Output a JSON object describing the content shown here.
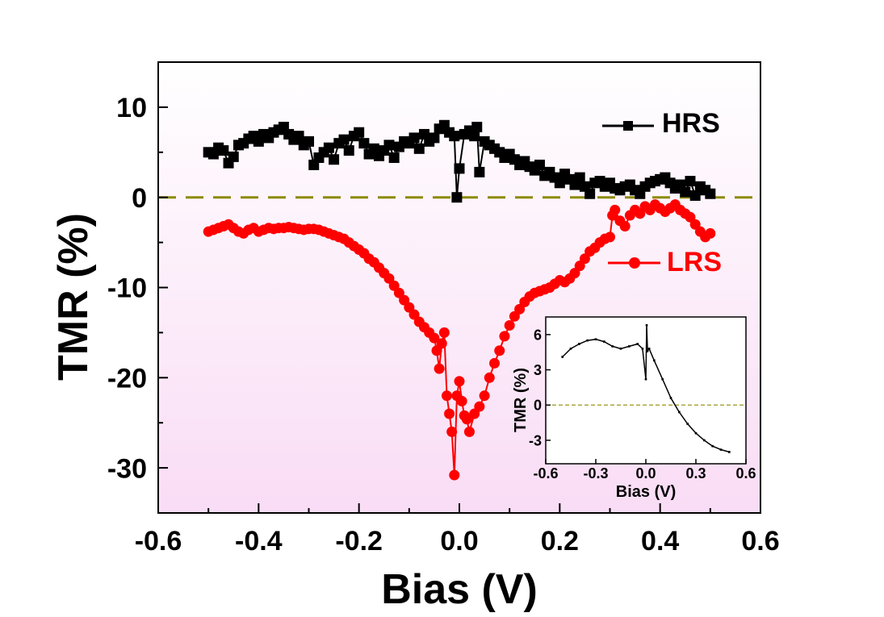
{
  "chart_data": [
    {
      "type": "line",
      "xlabel": "Bias (V)",
      "ylabel": "TMR (%)",
      "xlim": [
        -0.6,
        0.6
      ],
      "ylim": [
        -35,
        15
      ],
      "xticks": [
        "-0.6",
        "-0.4",
        "-0.2",
        "0.0",
        "0.2",
        "0.4",
        "0.6"
      ],
      "yticks": [
        "10",
        "0",
        "-10",
        "-20",
        "-30"
      ],
      "xtick_values": [
        -0.6,
        -0.4,
        -0.2,
        0.0,
        0.2,
        0.4,
        0.6
      ],
      "ytick_values": [
        10,
        0,
        -10,
        -20,
        -30
      ],
      "background": "pink gradient (white at top to light pink at bottom)",
      "reference_line": {
        "y": 0,
        "style": "dashed",
        "color": "#8b8b00"
      },
      "legend": [
        {
          "name": "HRS",
          "color": "#000000",
          "marker": "square",
          "position": "top-right"
        },
        {
          "name": "LRS",
          "color": "#ff0000",
          "marker": "circle",
          "position": "right"
        }
      ],
      "series": [
        {
          "name": "HRS",
          "color": "#000000",
          "marker": "square",
          "x": [
            -0.5,
            -0.49,
            -0.48,
            -0.47,
            -0.46,
            -0.45,
            -0.44,
            -0.43,
            -0.42,
            -0.41,
            -0.4,
            -0.39,
            -0.38,
            -0.37,
            -0.36,
            -0.35,
            -0.34,
            -0.33,
            -0.32,
            -0.31,
            -0.3,
            -0.29,
            -0.28,
            -0.27,
            -0.26,
            -0.25,
            -0.24,
            -0.23,
            -0.22,
            -0.21,
            -0.2,
            -0.19,
            -0.18,
            -0.17,
            -0.16,
            -0.15,
            -0.14,
            -0.13,
            -0.12,
            -0.11,
            -0.1,
            -0.09,
            -0.08,
            -0.07,
            -0.06,
            -0.05,
            -0.04,
            -0.03,
            -0.02,
            -0.01,
            -0.005,
            0.0,
            0.01,
            0.02,
            0.03,
            0.035,
            0.04,
            0.05,
            0.06,
            0.07,
            0.08,
            0.09,
            0.1,
            0.11,
            0.12,
            0.13,
            0.14,
            0.15,
            0.16,
            0.17,
            0.18,
            0.19,
            0.2,
            0.21,
            0.22,
            0.23,
            0.24,
            0.25,
            0.26,
            0.27,
            0.28,
            0.29,
            0.3,
            0.31,
            0.32,
            0.33,
            0.34,
            0.35,
            0.36,
            0.37,
            0.38,
            0.39,
            0.4,
            0.41,
            0.42,
            0.43,
            0.44,
            0.45,
            0.46,
            0.47,
            0.48,
            0.49,
            0.5
          ],
          "y": [
            5.0,
            4.8,
            5.5,
            5.2,
            3.8,
            4.5,
            5.8,
            6.0,
            6.5,
            6.8,
            6.2,
            7.0,
            6.6,
            7.2,
            7.5,
            7.8,
            7.0,
            6.4,
            6.8,
            5.8,
            6.2,
            3.6,
            4.4,
            5.0,
            5.5,
            4.2,
            6.0,
            6.4,
            5.2,
            6.8,
            7.2,
            6.0,
            4.8,
            5.4,
            4.6,
            5.2,
            5.8,
            4.4,
            5.6,
            6.2,
            6.0,
            6.6,
            5.4,
            7.0,
            6.2,
            6.6,
            7.6,
            8.0,
            7.2,
            6.8,
            0.0,
            3.2,
            7.0,
            7.4,
            6.8,
            7.8,
            2.8,
            6.2,
            5.8,
            5.4,
            5.0,
            4.4,
            4.8,
            4.2,
            3.6,
            4.0,
            3.4,
            3.0,
            3.6,
            2.4,
            2.8,
            2.2,
            1.6,
            2.6,
            2.0,
            1.4,
            2.2,
            1.2,
            0.4,
            1.6,
            1.8,
            1.2,
            1.6,
            1.0,
            0.8,
            1.2,
            1.4,
            0.8,
            0.4,
            1.2,
            1.6,
            1.8,
            2.0,
            2.2,
            1.6,
            1.0,
            1.4,
            0.6,
            1.8,
            0.2,
            1.2,
            0.8,
            0.4
          ]
        },
        {
          "name": "LRS",
          "color": "#ff0000",
          "marker": "circle",
          "x": [
            -0.5,
            -0.49,
            -0.48,
            -0.47,
            -0.46,
            -0.45,
            -0.44,
            -0.43,
            -0.42,
            -0.41,
            -0.4,
            -0.39,
            -0.38,
            -0.37,
            -0.36,
            -0.35,
            -0.34,
            -0.33,
            -0.32,
            -0.31,
            -0.3,
            -0.29,
            -0.28,
            -0.27,
            -0.26,
            -0.25,
            -0.24,
            -0.23,
            -0.22,
            -0.21,
            -0.2,
            -0.19,
            -0.18,
            -0.17,
            -0.16,
            -0.15,
            -0.14,
            -0.13,
            -0.12,
            -0.11,
            -0.1,
            -0.09,
            -0.08,
            -0.07,
            -0.06,
            -0.05,
            -0.045,
            -0.04,
            -0.035,
            -0.03,
            -0.025,
            -0.02,
            -0.015,
            -0.01,
            -0.005,
            0.0,
            0.005,
            0.01,
            0.015,
            0.02,
            0.03,
            0.04,
            0.05,
            0.06,
            0.07,
            0.08,
            0.09,
            0.1,
            0.11,
            0.12,
            0.13,
            0.14,
            0.15,
            0.16,
            0.17,
            0.18,
            0.19,
            0.2,
            0.21,
            0.22,
            0.23,
            0.24,
            0.25,
            0.26,
            0.27,
            0.28,
            0.29,
            0.3,
            0.305,
            0.31,
            0.32,
            0.33,
            0.34,
            0.35,
            0.36,
            0.37,
            0.38,
            0.39,
            0.4,
            0.41,
            0.42,
            0.43,
            0.44,
            0.45,
            0.46,
            0.47,
            0.48,
            0.49,
            0.5
          ],
          "y": [
            -3.8,
            -3.6,
            -3.4,
            -3.2,
            -3.0,
            -3.4,
            -3.8,
            -4.0,
            -3.6,
            -3.4,
            -3.8,
            -3.6,
            -3.4,
            -3.5,
            -3.4,
            -3.4,
            -3.3,
            -3.4,
            -3.5,
            -3.6,
            -3.5,
            -3.5,
            -3.6,
            -3.8,
            -4.0,
            -4.2,
            -4.4,
            -4.6,
            -5.0,
            -5.4,
            -5.8,
            -6.2,
            -6.8,
            -7.2,
            -7.8,
            -8.4,
            -9.0,
            -9.8,
            -10.6,
            -11.4,
            -12.2,
            -13.0,
            -13.8,
            -14.4,
            -15.0,
            -15.6,
            -17.0,
            -19.0,
            -16.2,
            -15.0,
            -22.0,
            -24.0,
            -26.0,
            -30.8,
            -22.0,
            -20.4,
            -22.6,
            -24.2,
            -24.6,
            -26.0,
            -24.0,
            -23.2,
            -22.0,
            -20.0,
            -18.4,
            -17.0,
            -15.4,
            -14.2,
            -13.2,
            -12.4,
            -11.6,
            -11.0,
            -10.6,
            -10.4,
            -10.2,
            -10.0,
            -9.6,
            -9.2,
            -9.4,
            -9.0,
            -8.4,
            -7.6,
            -6.8,
            -6.0,
            -5.6,
            -5.0,
            -4.6,
            -4.4,
            -2.0,
            -1.4,
            -2.6,
            -3.2,
            -2.0,
            -1.4,
            -1.8,
            -1.0,
            -1.4,
            -0.8,
            -1.2,
            -1.6,
            -1.2,
            -0.8,
            -1.4,
            -1.8,
            -2.2,
            -3.0,
            -3.8,
            -4.4,
            -4.0
          ]
        }
      ]
    },
    {
      "type": "line",
      "inset": true,
      "xlabel": "Bias (V)",
      "ylabel": "TMR (%)",
      "xlim": [
        -0.6,
        0.6
      ],
      "ylim": [
        -5,
        7.5
      ],
      "xticks": [
        "-0.6",
        "-0.3",
        "0.0",
        "0.3",
        "0.6"
      ],
      "yticks": [
        "6",
        "3",
        "0",
        "-3"
      ],
      "xtick_values": [
        -0.6,
        -0.3,
        0.0,
        0.3,
        0.6
      ],
      "ytick_values": [
        6,
        3,
        0,
        -3
      ],
      "reference_line": {
        "y": 0,
        "style": "dashed",
        "color": "#8b8b00"
      },
      "series": [
        {
          "color": "#000000",
          "marker": "square-small",
          "x": [
            -0.5,
            -0.45,
            -0.4,
            -0.35,
            -0.3,
            -0.25,
            -0.2,
            -0.15,
            -0.1,
            -0.05,
            -0.02,
            0.0,
            0.005,
            0.01,
            0.02,
            0.05,
            0.1,
            0.15,
            0.2,
            0.25,
            0.3,
            0.35,
            0.4,
            0.45,
            0.5
          ],
          "y": [
            4.1,
            4.8,
            5.2,
            5.5,
            5.6,
            5.4,
            5.0,
            4.8,
            5.0,
            5.2,
            4.8,
            2.2,
            6.8,
            4.6,
            4.8,
            3.8,
            2.2,
            0.6,
            -0.6,
            -1.6,
            -2.4,
            -3.0,
            -3.5,
            -3.8,
            -4.0
          ]
        }
      ]
    }
  ]
}
